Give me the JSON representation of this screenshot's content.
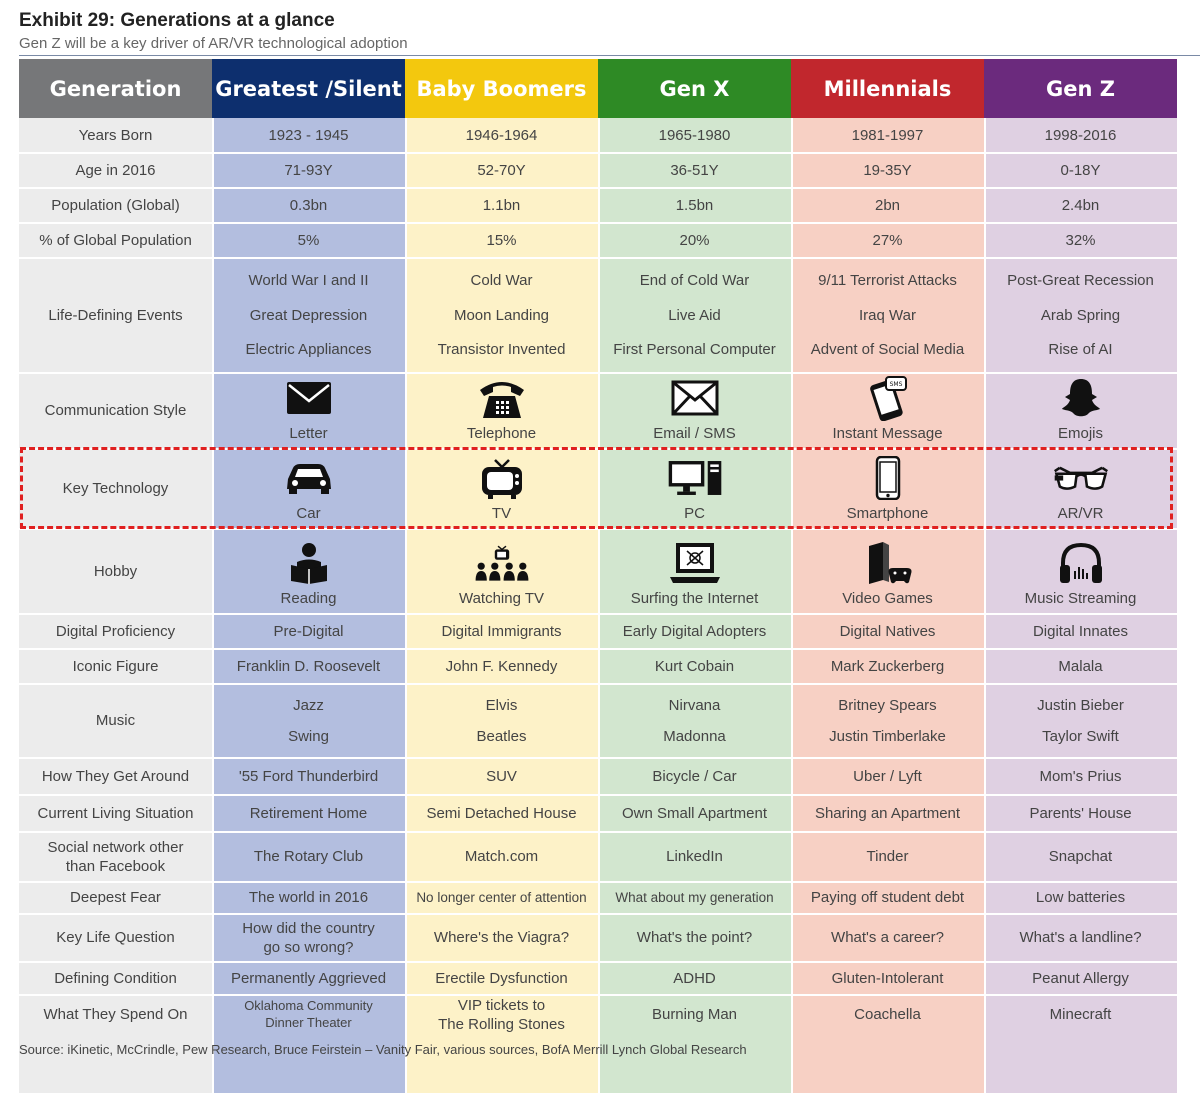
{
  "title": "Exhibit 29: Generations at a glance",
  "subtitle": "Gen Z will be a key driver of AR/VR technological adoption",
  "source": "Source: iKinetic, McCrindle, Pew Research, Bruce Feirstein – Vanity Fair, various sources, BofA Merrill Lynch Global Research",
  "colors": {
    "generation_header": "#767779",
    "greatest_header": "#0d2f6e",
    "boomers_header": "#f3c80e",
    "genx_header": "#2e8a25",
    "millennials_header": "#c1272d",
    "genz_header": "#6b2a7d",
    "label_bg": "#ececec",
    "greatest_bg": "#b3bedf",
    "boomers_bg": "#fdf2c8",
    "genx_bg": "#d2e6cf",
    "millennials_bg": "#f7d0c4",
    "genz_bg": "#dfd0e2",
    "highlight": "#e02020"
  },
  "headers": [
    "Generation",
    "Greatest /Silent",
    "Baby Boomers",
    "Gen X",
    "Millennials",
    "Gen Z"
  ],
  "row_labels": {
    "years_born": "Years Born",
    "age_2016": "Age in 2016",
    "population": "Population (Global)",
    "pct_population": "% of Global Population",
    "life_events": "Life-Defining Events",
    "communication": "Communication Style",
    "key_tech": "Key Technology",
    "hobby": "Hobby",
    "digital": "Digital Proficiency",
    "iconic": "Iconic Figure",
    "music": "Music",
    "get_around": "How They Get Around",
    "living": "Current Living Situation",
    "social_1": "Social network other",
    "social_2": "than Facebook",
    "fear": "Deepest Fear",
    "question": "Key Life Question",
    "condition": "Defining Condition",
    "spend": "What They Spend On"
  },
  "generations": [
    {
      "years_born": "1923 - 1945",
      "age_2016": "71-93Y",
      "population": "0.3bn",
      "pct_population": "5%",
      "events": [
        "World War I and II",
        "Great Depression",
        "Electric Appliances"
      ],
      "communication": "Letter",
      "communication_icon": "envelope-icon",
      "key_tech": "Car",
      "key_tech_icon": "car-icon",
      "hobby": "Reading",
      "hobby_icon": "reading-icon",
      "digital": "Pre-Digital",
      "iconic": "Franklin D. Roosevelt",
      "music": [
        "Jazz",
        "Swing"
      ],
      "get_around": "'55 Ford Thunderbird",
      "living": "Retirement Home",
      "social": "The Rotary Club",
      "fear": "The world in 2016",
      "question_1": "How did the country",
      "question_2": "go so wrong?",
      "condition": "Permanently Aggrieved",
      "spend_1": "Oklahoma Community",
      "spend_2": "Dinner Theater"
    },
    {
      "years_born": "1946-1964",
      "age_2016": "52-70Y",
      "population": "1.1bn",
      "pct_population": "15%",
      "events": [
        "Cold War",
        "Moon Landing",
        "Transistor Invented"
      ],
      "communication": "Telephone",
      "communication_icon": "telephone-icon",
      "key_tech": "TV",
      "key_tech_icon": "tv-icon",
      "hobby": "Watching TV",
      "hobby_icon": "watching-tv-icon",
      "digital": "Digital Immigrants",
      "iconic": "John F. Kennedy",
      "music": [
        "Elvis",
        "Beatles"
      ],
      "get_around": "SUV",
      "living": "Semi Detached House",
      "social": "Match.com",
      "fear": "No longer center of attention",
      "question_1": "Where's the Viagra?",
      "question_2": "",
      "condition": "Erectile Dysfunction",
      "spend_1": "VIP tickets to",
      "spend_2": "The Rolling Stones"
    },
    {
      "years_born": "1965-1980",
      "age_2016": "36-51Y",
      "population": "1.5bn",
      "pct_population": "20%",
      "events": [
        "End of Cold War",
        "Live Aid",
        "First Personal Computer"
      ],
      "communication": "Email / SMS",
      "communication_icon": "email-icon",
      "key_tech": "PC",
      "key_tech_icon": "pc-icon",
      "hobby": "Surfing the Internet",
      "hobby_icon": "laptop-icon",
      "digital": "Early Digital Adopters",
      "iconic": "Kurt Cobain",
      "music": [
        "Nirvana",
        "Madonna"
      ],
      "get_around": "Bicycle / Car",
      "living": "Own Small Apartment",
      "social": "LinkedIn",
      "fear": "What about my generation",
      "question_1": "What's the point?",
      "question_2": "",
      "condition": "ADHD",
      "spend_1": "Burning Man",
      "spend_2": ""
    },
    {
      "years_born": "1981-1997",
      "age_2016": "19-35Y",
      "population": "2bn",
      "pct_population": "27%",
      "events": [
        "9/11 Terrorist Attacks",
        "Iraq War",
        "Advent of Social Media"
      ],
      "communication": "Instant Message",
      "communication_icon": "instant-message-icon",
      "key_tech": "Smartphone",
      "key_tech_icon": "smartphone-icon",
      "hobby": "Video Games",
      "hobby_icon": "game-console-icon",
      "digital": "Digital Natives",
      "iconic": "Mark Zuckerberg",
      "music": [
        "Britney Spears",
        "Justin Timberlake"
      ],
      "get_around": "Uber / Lyft",
      "living": "Sharing an Apartment",
      "social": "Tinder",
      "fear": "Paying off student debt",
      "question_1": "What's a career?",
      "question_2": "",
      "condition": "Gluten-Intolerant",
      "spend_1": "Coachella",
      "spend_2": ""
    },
    {
      "years_born": "1998-2016",
      "age_2016": "0-18Y",
      "population": "2.4bn",
      "pct_population": "32%",
      "events": [
        "Post-Great Recession",
        "Arab Spring",
        "Rise of AI"
      ],
      "communication": "Emojis",
      "communication_icon": "ghost-icon",
      "key_tech": "AR/VR",
      "key_tech_icon": "smart-glasses-icon",
      "hobby": "Music Streaming",
      "hobby_icon": "headphones-icon",
      "digital": "Digital Innates",
      "iconic": "Malala",
      "music": [
        "Justin Bieber",
        "Taylor Swift"
      ],
      "get_around": "Mom's Prius",
      "living": "Parents' House",
      "social": "Snapchat",
      "fear": "Low batteries",
      "question_1": "What's a landline?",
      "question_2": "",
      "condition": "Peanut Allergy",
      "spend_1": "Minecraft",
      "spend_2": ""
    }
  ]
}
